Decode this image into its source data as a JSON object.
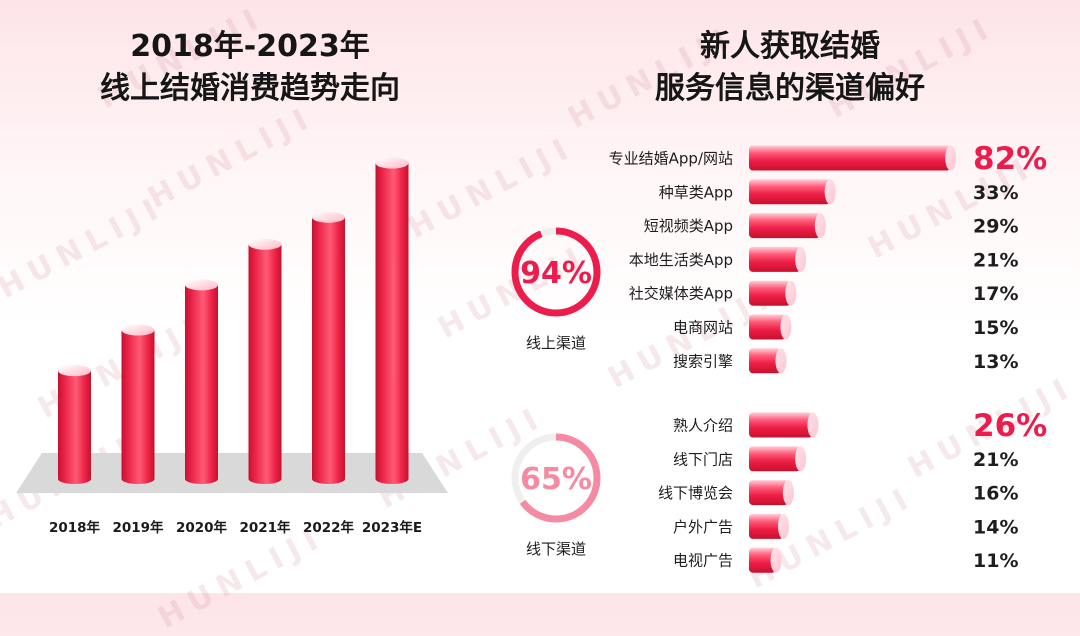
{
  "watermark": "HUNLIJI",
  "colors": {
    "accent": "#ec1d4d",
    "bar_light": "#ffd2dc",
    "online_ring": "#ec1d4d",
    "offline_ring": "#f58aa3",
    "ring_track": "#efefef",
    "platform": "#d9d9d9"
  },
  "left": {
    "title_line1": "2018年-2023年",
    "title_line2": "线上结婚消费趋势走向"
  },
  "right": {
    "title_line1": "新人获取结婚",
    "title_line2": "服务信息的渠道偏好"
  },
  "chart_data": [
    {
      "type": "bar",
      "title": "2018年-2023年 线上结婚消费趋势走向",
      "categories": [
        "2018年",
        "2019年",
        "2020年",
        "2021年",
        "2022年",
        "2023年E"
      ],
      "values": [
        120,
        165,
        215,
        260,
        290,
        350
      ],
      "ylim": [
        0,
        370
      ],
      "xlabel": "",
      "ylabel": "",
      "grid": false,
      "note": "no axis values shown; relative heights estimated from bar lengths"
    },
    {
      "type": "bar",
      "orientation": "horizontal",
      "title": "新人获取结婚 服务信息的渠道偏好",
      "xlim": [
        0,
        100
      ],
      "groups": [
        {
          "name": "线上渠道",
          "total": 94,
          "total_label": "94%",
          "categories": [
            "专业结婚App/网站",
            "种草类App",
            "短视频类App",
            "本地生活类App",
            "社交媒体类App",
            "电商网站",
            "搜索引擎"
          ],
          "values": [
            82,
            33,
            29,
            21,
            17,
            15,
            13
          ],
          "labels": [
            "82%",
            "33%",
            "29%",
            "21%",
            "17%",
            "15%",
            "13%"
          ]
        },
        {
          "name": "线下渠道",
          "total": 65,
          "total_label": "65%",
          "categories": [
            "熟人介绍",
            "线下门店",
            "线下博览会",
            "户外广告",
            "电视广告"
          ],
          "values": [
            26,
            21,
            16,
            14,
            11
          ],
          "labels": [
            "26%",
            "21%",
            "16%",
            "14%",
            "11%"
          ]
        }
      ]
    }
  ]
}
